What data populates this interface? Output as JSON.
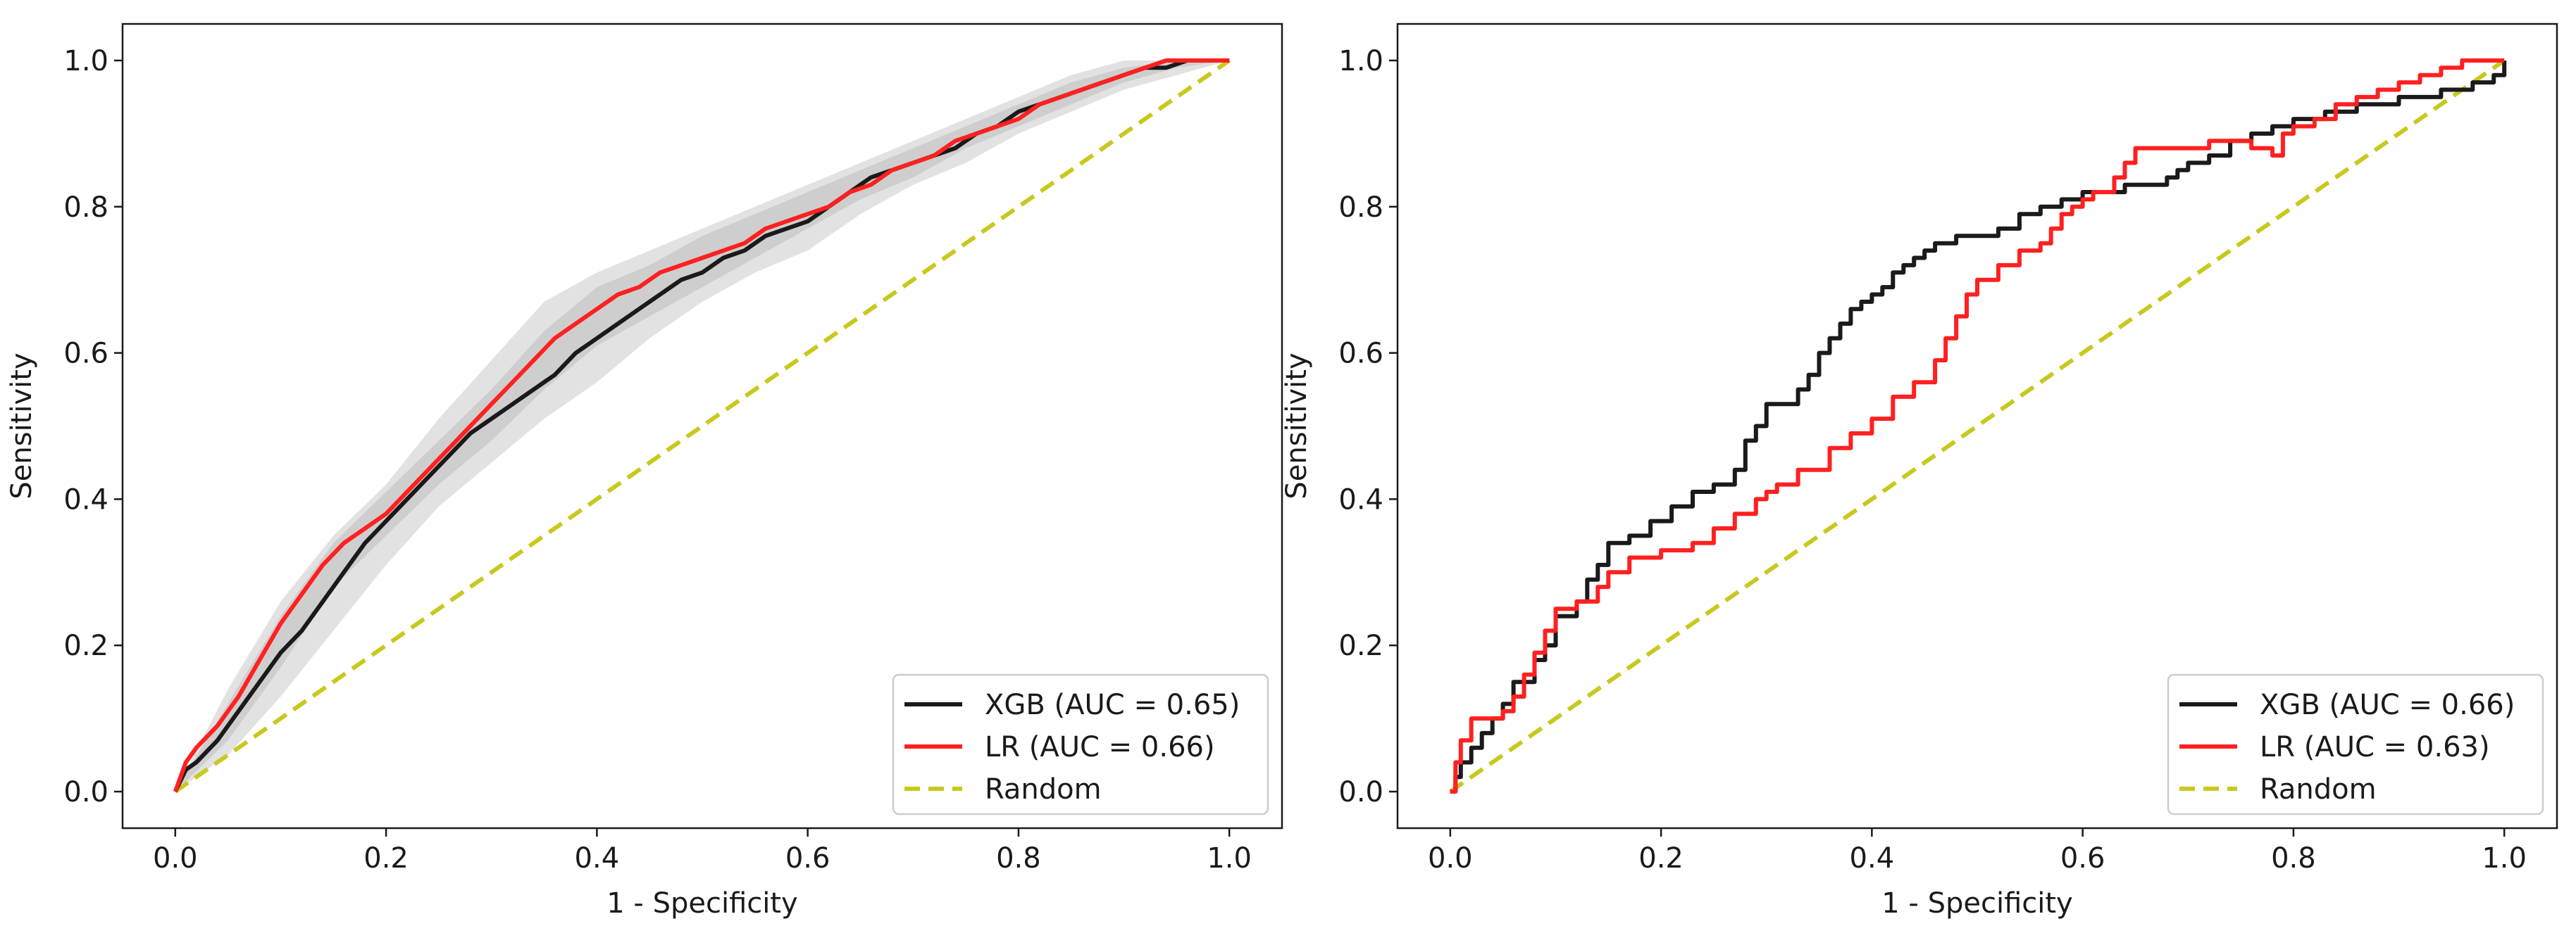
{
  "chart_data": [
    {
      "type": "line",
      "title": "",
      "xlabel": "1 - Specificity",
      "ylabel": "Sensitivity",
      "xlim": [
        -0.05,
        1.05
      ],
      "ylim": [
        -0.05,
        1.05
      ],
      "xticks": [
        0.0,
        0.2,
        0.4,
        0.6,
        0.8,
        1.0
      ],
      "yticks": [
        0.0,
        0.2,
        0.4,
        0.6,
        0.8,
        1.0
      ],
      "xtick_labels": [
        "0.0",
        "0.2",
        "0.4",
        "0.6",
        "0.8",
        "1.0"
      ],
      "ytick_labels": [
        "0.0",
        "0.2",
        "0.4",
        "0.6",
        "0.8",
        "1.0"
      ],
      "grid": false,
      "legend_position": "bottom-right",
      "series": [
        {
          "name": "XGB (AUC = 0.65)",
          "color": "#1a1a1a",
          "style": "solid",
          "x": [
            0.0,
            0.01,
            0.02,
            0.04,
            0.06,
            0.08,
            0.1,
            0.12,
            0.14,
            0.16,
            0.18,
            0.2,
            0.22,
            0.24,
            0.26,
            0.28,
            0.3,
            0.32,
            0.34,
            0.36,
            0.38,
            0.4,
            0.42,
            0.44,
            0.46,
            0.48,
            0.5,
            0.52,
            0.54,
            0.56,
            0.58,
            0.6,
            0.62,
            0.64,
            0.66,
            0.68,
            0.7,
            0.72,
            0.74,
            0.76,
            0.78,
            0.8,
            0.82,
            0.84,
            0.86,
            0.88,
            0.9,
            0.92,
            0.94,
            0.96,
            0.98,
            1.0
          ],
          "y": [
            0.0,
            0.03,
            0.04,
            0.07,
            0.11,
            0.15,
            0.19,
            0.22,
            0.26,
            0.3,
            0.34,
            0.37,
            0.4,
            0.43,
            0.46,
            0.49,
            0.51,
            0.53,
            0.55,
            0.57,
            0.6,
            0.62,
            0.64,
            0.66,
            0.68,
            0.7,
            0.71,
            0.73,
            0.74,
            0.76,
            0.77,
            0.78,
            0.8,
            0.82,
            0.84,
            0.85,
            0.86,
            0.87,
            0.88,
            0.9,
            0.91,
            0.93,
            0.94,
            0.95,
            0.96,
            0.97,
            0.98,
            0.99,
            0.99,
            1.0,
            1.0,
            1.0
          ]
        },
        {
          "name": "LR (AUC = 0.66)",
          "color": "#ff2020",
          "style": "solid",
          "x": [
            0.0,
            0.01,
            0.02,
            0.04,
            0.06,
            0.08,
            0.1,
            0.12,
            0.14,
            0.16,
            0.18,
            0.2,
            0.22,
            0.24,
            0.26,
            0.28,
            0.3,
            0.32,
            0.34,
            0.36,
            0.38,
            0.4,
            0.42,
            0.44,
            0.46,
            0.48,
            0.5,
            0.52,
            0.54,
            0.56,
            0.58,
            0.6,
            0.62,
            0.64,
            0.66,
            0.68,
            0.7,
            0.72,
            0.74,
            0.76,
            0.78,
            0.8,
            0.82,
            0.84,
            0.86,
            0.88,
            0.9,
            0.92,
            0.94,
            0.96,
            0.98,
            1.0
          ],
          "y": [
            0.0,
            0.04,
            0.06,
            0.09,
            0.13,
            0.18,
            0.23,
            0.27,
            0.31,
            0.34,
            0.36,
            0.38,
            0.41,
            0.44,
            0.47,
            0.5,
            0.53,
            0.56,
            0.59,
            0.62,
            0.64,
            0.66,
            0.68,
            0.69,
            0.71,
            0.72,
            0.73,
            0.74,
            0.75,
            0.77,
            0.78,
            0.79,
            0.8,
            0.82,
            0.83,
            0.85,
            0.86,
            0.87,
            0.89,
            0.9,
            0.91,
            0.92,
            0.94,
            0.95,
            0.96,
            0.97,
            0.98,
            0.99,
            1.0,
            1.0,
            1.0,
            1.0
          ]
        },
        {
          "name": "Random",
          "color": "#c8c81e",
          "style": "dashed",
          "x": [
            0.0,
            1.0
          ],
          "y": [
            0.0,
            1.0
          ]
        }
      ],
      "bands": [
        {
          "color": "#a0a0a0",
          "x": [
            0.0,
            0.05,
            0.1,
            0.15,
            0.2,
            0.25,
            0.3,
            0.35,
            0.4,
            0.45,
            0.5,
            0.55,
            0.6,
            0.65,
            0.7,
            0.75,
            0.8,
            0.85,
            0.9,
            0.95,
            1.0
          ],
          "lower": [
            0.0,
            0.05,
            0.13,
            0.22,
            0.31,
            0.39,
            0.45,
            0.51,
            0.56,
            0.62,
            0.67,
            0.71,
            0.74,
            0.79,
            0.83,
            0.86,
            0.9,
            0.93,
            0.96,
            0.98,
            1.0
          ],
          "upper": [
            0.0,
            0.14,
            0.26,
            0.35,
            0.42,
            0.51,
            0.59,
            0.67,
            0.71,
            0.74,
            0.77,
            0.8,
            0.83,
            0.86,
            0.89,
            0.92,
            0.95,
            0.98,
            1.0,
            1.0,
            1.0
          ]
        },
        {
          "color": "#a0a0a0",
          "x": [
            0.0,
            0.05,
            0.1,
            0.15,
            0.2,
            0.25,
            0.3,
            0.35,
            0.4,
            0.45,
            0.5,
            0.55,
            0.6,
            0.65,
            0.7,
            0.75,
            0.8,
            0.85,
            0.9,
            0.95,
            1.0
          ],
          "lower": [
            0.0,
            0.07,
            0.17,
            0.28,
            0.35,
            0.42,
            0.48,
            0.55,
            0.61,
            0.65,
            0.69,
            0.73,
            0.77,
            0.81,
            0.84,
            0.88,
            0.91,
            0.94,
            0.97,
            0.99,
            1.0
          ],
          "upper": [
            0.0,
            0.12,
            0.24,
            0.34,
            0.41,
            0.48,
            0.55,
            0.63,
            0.69,
            0.72,
            0.76,
            0.79,
            0.82,
            0.85,
            0.88,
            0.91,
            0.94,
            0.97,
            0.99,
            1.0,
            1.0
          ]
        }
      ]
    },
    {
      "type": "line",
      "title": "",
      "xlabel": "1 - Specificity",
      "ylabel": "Sensitivity",
      "xlim": [
        -0.05,
        1.05
      ],
      "ylim": [
        -0.05,
        1.05
      ],
      "xticks": [
        0.0,
        0.2,
        0.4,
        0.6,
        0.8,
        1.0
      ],
      "yticks": [
        0.0,
        0.2,
        0.4,
        0.6,
        0.8,
        1.0
      ],
      "xtick_labels": [
        "0.0",
        "0.2",
        "0.4",
        "0.6",
        "0.8",
        "1.0"
      ],
      "ytick_labels": [
        "0.0",
        "0.2",
        "0.4",
        "0.6",
        "0.8",
        "1.0"
      ],
      "grid": false,
      "legend_position": "bottom-right",
      "series": [
        {
          "name": "XGB (AUC = 0.66)",
          "color": "#1a1a1a",
          "style": "step",
          "x": [
            0.0,
            0.005,
            0.01,
            0.02,
            0.03,
            0.04,
            0.05,
            0.06,
            0.08,
            0.09,
            0.1,
            0.12,
            0.13,
            0.14,
            0.15,
            0.17,
            0.19,
            0.21,
            0.23,
            0.25,
            0.27,
            0.28,
            0.29,
            0.3,
            0.33,
            0.34,
            0.35,
            0.36,
            0.37,
            0.38,
            0.39,
            0.4,
            0.41,
            0.42,
            0.43,
            0.44,
            0.45,
            0.46,
            0.47,
            0.48,
            0.5,
            0.52,
            0.54,
            0.56,
            0.58,
            0.59,
            0.6,
            0.62,
            0.64,
            0.68,
            0.69,
            0.7,
            0.72,
            0.74,
            0.76,
            0.78,
            0.8,
            0.83,
            0.86,
            0.9,
            0.94,
            0.97,
            0.99,
            1.0
          ],
          "y": [
            0.0,
            0.02,
            0.04,
            0.06,
            0.08,
            0.1,
            0.12,
            0.15,
            0.18,
            0.2,
            0.24,
            0.26,
            0.29,
            0.31,
            0.34,
            0.35,
            0.37,
            0.39,
            0.41,
            0.42,
            0.44,
            0.48,
            0.5,
            0.53,
            0.55,
            0.57,
            0.6,
            0.62,
            0.64,
            0.66,
            0.67,
            0.68,
            0.69,
            0.71,
            0.72,
            0.73,
            0.74,
            0.75,
            0.75,
            0.76,
            0.76,
            0.77,
            0.79,
            0.8,
            0.81,
            0.81,
            0.82,
            0.82,
            0.83,
            0.84,
            0.85,
            0.86,
            0.87,
            0.89,
            0.9,
            0.91,
            0.92,
            0.93,
            0.94,
            0.95,
            0.96,
            0.97,
            0.98,
            1.0
          ]
        },
        {
          "name": "LR (AUC = 0.63)",
          "color": "#ff2020",
          "style": "step",
          "x": [
            0.0,
            0.005,
            0.01,
            0.02,
            0.05,
            0.06,
            0.07,
            0.08,
            0.09,
            0.1,
            0.12,
            0.14,
            0.15,
            0.17,
            0.2,
            0.23,
            0.25,
            0.27,
            0.29,
            0.3,
            0.31,
            0.33,
            0.36,
            0.38,
            0.4,
            0.42,
            0.44,
            0.46,
            0.47,
            0.48,
            0.49,
            0.5,
            0.52,
            0.54,
            0.56,
            0.57,
            0.58,
            0.59,
            0.6,
            0.61,
            0.63,
            0.64,
            0.65,
            0.7,
            0.72,
            0.74,
            0.76,
            0.78,
            0.79,
            0.8,
            0.82,
            0.84,
            0.86,
            0.88,
            0.9,
            0.92,
            0.94,
            0.96,
            0.98,
            1.0
          ],
          "y": [
            0.0,
            0.04,
            0.07,
            0.1,
            0.11,
            0.13,
            0.16,
            0.19,
            0.22,
            0.25,
            0.26,
            0.28,
            0.3,
            0.32,
            0.33,
            0.34,
            0.36,
            0.38,
            0.4,
            0.41,
            0.42,
            0.44,
            0.47,
            0.49,
            0.51,
            0.54,
            0.56,
            0.59,
            0.62,
            0.65,
            0.68,
            0.7,
            0.72,
            0.74,
            0.75,
            0.77,
            0.79,
            0.8,
            0.81,
            0.82,
            0.84,
            0.86,
            0.88,
            0.88,
            0.89,
            0.89,
            0.88,
            0.87,
            0.9,
            0.91,
            0.92,
            0.94,
            0.95,
            0.96,
            0.97,
            0.98,
            0.99,
            1.0,
            1.0,
            1.0
          ]
        },
        {
          "name": "Random",
          "color": "#c8c81e",
          "style": "dashed",
          "x": [
            0.0,
            1.0
          ],
          "y": [
            0.0,
            1.0
          ]
        }
      ],
      "bands": []
    }
  ]
}
